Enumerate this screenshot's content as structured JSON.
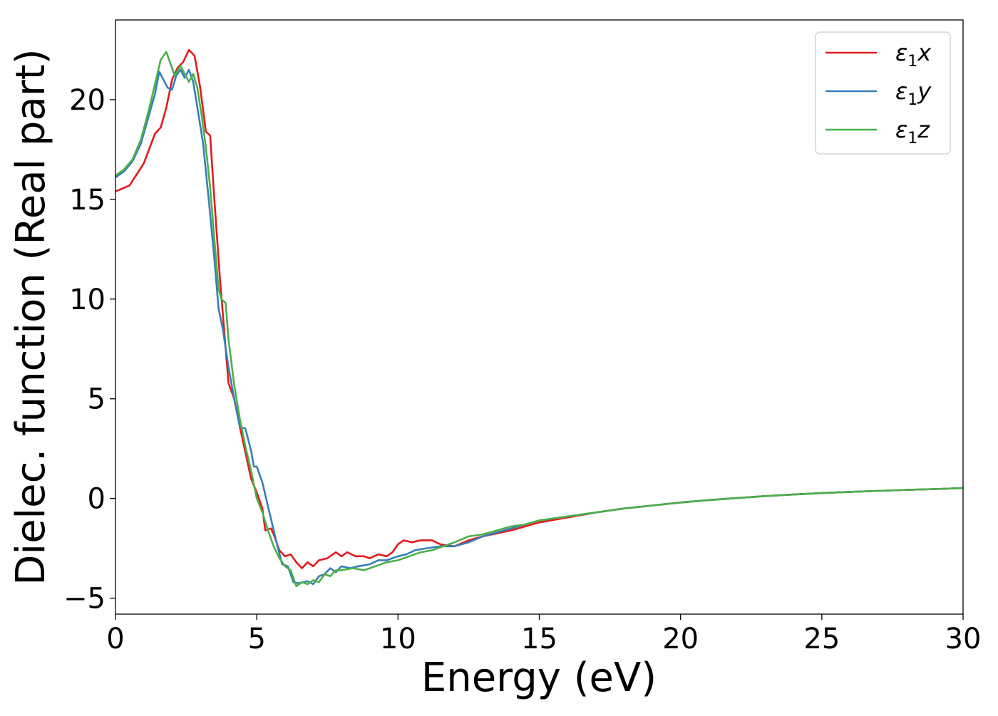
{
  "chart_data": {
    "type": "line",
    "title": "",
    "xlabel": "Energy (eV)",
    "ylabel": "Dielec. function (Real part)",
    "xlim": [
      0,
      30
    ],
    "ylim": [
      -5.8,
      24
    ],
    "x_ticks": [
      0,
      5,
      10,
      15,
      20,
      25,
      30
    ],
    "x_tick_labels": [
      "0",
      "5",
      "10",
      "15",
      "20",
      "25",
      "30"
    ],
    "y_ticks": [
      -5,
      0,
      5,
      10,
      15,
      20
    ],
    "y_tick_labels": [
      "−5",
      "0",
      "5",
      "10",
      "15",
      "20"
    ],
    "grid": false,
    "legend_position": "top-right",
    "series": [
      {
        "name": "ε₁x",
        "legend": {
          "base": "ε",
          "sub": "1",
          "var": "x"
        },
        "color": "#e41a1c",
        "points": [
          [
            0,
            15.4
          ],
          [
            0.5,
            15.7
          ],
          [
            1.0,
            16.8
          ],
          [
            1.4,
            18.3
          ],
          [
            1.6,
            18.6
          ],
          [
            1.8,
            19.6
          ],
          [
            2.0,
            21.0
          ],
          [
            2.2,
            21.6
          ],
          [
            2.4,
            21.9
          ],
          [
            2.6,
            22.5
          ],
          [
            2.8,
            22.2
          ],
          [
            3.0,
            20.6
          ],
          [
            3.2,
            18.4
          ],
          [
            3.35,
            18.2
          ],
          [
            3.5,
            15.0
          ],
          [
            3.7,
            11.0
          ],
          [
            3.9,
            7.5
          ],
          [
            4.0,
            5.8
          ],
          [
            4.2,
            5.0
          ],
          [
            4.4,
            3.6
          ],
          [
            4.6,
            2.3
          ],
          [
            4.8,
            1.0
          ],
          [
            5.0,
            0.3
          ],
          [
            5.2,
            -0.5
          ],
          [
            5.3,
            -1.6
          ],
          [
            5.5,
            -1.5
          ],
          [
            5.6,
            -1.8
          ],
          [
            5.8,
            -2.6
          ],
          [
            6.0,
            -2.9
          ],
          [
            6.2,
            -2.8
          ],
          [
            6.4,
            -3.2
          ],
          [
            6.6,
            -3.5
          ],
          [
            6.8,
            -3.2
          ],
          [
            7.0,
            -3.4
          ],
          [
            7.2,
            -3.1
          ],
          [
            7.5,
            -3.0
          ],
          [
            7.8,
            -2.7
          ],
          [
            8.0,
            -2.9
          ],
          [
            8.2,
            -2.7
          ],
          [
            8.5,
            -2.9
          ],
          [
            8.8,
            -2.9
          ],
          [
            9.0,
            -3.0
          ],
          [
            9.3,
            -2.8
          ],
          [
            9.6,
            -2.9
          ],
          [
            9.8,
            -2.7
          ],
          [
            10.0,
            -2.3
          ],
          [
            10.2,
            -2.1
          ],
          [
            10.5,
            -2.2
          ],
          [
            10.8,
            -2.1
          ],
          [
            11.2,
            -2.1
          ],
          [
            11.5,
            -2.3
          ],
          [
            12.0,
            -2.4
          ],
          [
            12.5,
            -2.1
          ],
          [
            13.0,
            -1.9
          ],
          [
            14.0,
            -1.6
          ],
          [
            15.0,
            -1.2
          ],
          [
            16.0,
            -0.95
          ],
          [
            17.0,
            -0.7
          ],
          [
            18.0,
            -0.5
          ],
          [
            19.0,
            -0.35
          ],
          [
            20.0,
            -0.2
          ],
          [
            21.0,
            -0.08
          ],
          [
            22.0,
            0.02
          ],
          [
            23.0,
            0.12
          ],
          [
            24.0,
            0.2
          ],
          [
            25.0,
            0.27
          ],
          [
            26.0,
            0.33
          ],
          [
            27.0,
            0.38
          ],
          [
            28.0,
            0.43
          ],
          [
            29.0,
            0.47
          ],
          [
            30.0,
            0.52
          ]
        ]
      },
      {
        "name": "ε₁y",
        "legend": {
          "base": "ε",
          "sub": "1",
          "var": "y"
        },
        "color": "#377eb8",
        "points": [
          [
            0,
            16.1
          ],
          [
            0.3,
            16.4
          ],
          [
            0.6,
            16.9
          ],
          [
            0.9,
            17.8
          ],
          [
            1.2,
            19.3
          ],
          [
            1.4,
            20.3
          ],
          [
            1.55,
            21.4
          ],
          [
            1.7,
            21.0
          ],
          [
            1.85,
            20.6
          ],
          [
            2.0,
            20.5
          ],
          [
            2.15,
            21.2
          ],
          [
            2.3,
            21.5
          ],
          [
            2.45,
            21.1
          ],
          [
            2.6,
            21.5
          ],
          [
            2.75,
            20.9
          ],
          [
            2.9,
            19.6
          ],
          [
            3.1,
            17.8
          ],
          [
            3.3,
            15.0
          ],
          [
            3.5,
            12.0
          ],
          [
            3.65,
            9.5
          ],
          [
            3.8,
            8.5
          ],
          [
            4.0,
            6.6
          ],
          [
            4.2,
            5.0
          ],
          [
            4.4,
            3.6
          ],
          [
            4.6,
            3.5
          ],
          [
            4.8,
            2.4
          ],
          [
            4.9,
            1.6
          ],
          [
            5.0,
            1.6
          ],
          [
            5.2,
            0.8
          ],
          [
            5.4,
            -0.4
          ],
          [
            5.5,
            -1.0
          ],
          [
            5.7,
            -2.2
          ],
          [
            5.9,
            -3.3
          ],
          [
            6.1,
            -3.4
          ],
          [
            6.3,
            -4.2
          ],
          [
            6.5,
            -4.25
          ],
          [
            6.8,
            -4.15
          ],
          [
            7.0,
            -4.3
          ],
          [
            7.2,
            -3.9
          ],
          [
            7.4,
            -3.8
          ],
          [
            7.6,
            -3.5
          ],
          [
            7.8,
            -3.7
          ],
          [
            8.0,
            -3.4
          ],
          [
            8.3,
            -3.5
          ],
          [
            8.6,
            -3.4
          ],
          [
            9.0,
            -3.3
          ],
          [
            9.3,
            -3.1
          ],
          [
            9.6,
            -3.1
          ],
          [
            10.0,
            -2.9
          ],
          [
            10.3,
            -2.8
          ],
          [
            10.6,
            -2.6
          ],
          [
            11.0,
            -2.5
          ],
          [
            11.5,
            -2.4
          ],
          [
            12.0,
            -2.4
          ],
          [
            12.5,
            -2.2
          ],
          [
            13.0,
            -1.9
          ],
          [
            13.5,
            -1.7
          ],
          [
            14.0,
            -1.5
          ],
          [
            14.5,
            -1.3
          ],
          [
            15.0,
            -1.1
          ],
          [
            16.0,
            -0.9
          ],
          [
            17.0,
            -0.7
          ],
          [
            18.0,
            -0.5
          ],
          [
            19.0,
            -0.35
          ],
          [
            20.0,
            -0.2
          ],
          [
            21.0,
            -0.08
          ],
          [
            22.0,
            0.02
          ],
          [
            23.0,
            0.12
          ],
          [
            24.0,
            0.2
          ],
          [
            25.0,
            0.27
          ],
          [
            26.0,
            0.33
          ],
          [
            27.0,
            0.38
          ],
          [
            28.0,
            0.43
          ],
          [
            29.0,
            0.47
          ],
          [
            30.0,
            0.52
          ]
        ]
      },
      {
        "name": "ε₁z",
        "legend": {
          "base": "ε",
          "sub": "1",
          "var": "z"
        },
        "color": "#4daf4a",
        "points": [
          [
            0,
            16.2
          ],
          [
            0.3,
            16.5
          ],
          [
            0.6,
            17.0
          ],
          [
            0.9,
            18.0
          ],
          [
            1.2,
            19.6
          ],
          [
            1.4,
            20.8
          ],
          [
            1.6,
            22.0
          ],
          [
            1.8,
            22.4
          ],
          [
            1.95,
            21.8
          ],
          [
            2.1,
            21.2
          ],
          [
            2.3,
            21.7
          ],
          [
            2.45,
            21.3
          ],
          [
            2.6,
            20.9
          ],
          [
            2.75,
            21.3
          ],
          [
            2.9,
            20.6
          ],
          [
            3.05,
            19.2
          ],
          [
            3.2,
            17.6
          ],
          [
            3.35,
            15.6
          ],
          [
            3.5,
            13.0
          ],
          [
            3.65,
            10.5
          ],
          [
            3.75,
            10.0
          ],
          [
            3.9,
            9.8
          ],
          [
            4.0,
            8.0
          ],
          [
            4.2,
            5.7
          ],
          [
            4.4,
            4.0
          ],
          [
            4.6,
            2.6
          ],
          [
            4.8,
            1.4
          ],
          [
            5.0,
            0.0
          ],
          [
            5.2,
            -0.7
          ],
          [
            5.4,
            -1.6
          ],
          [
            5.6,
            -2.4
          ],
          [
            5.8,
            -3.0
          ],
          [
            6.0,
            -3.4
          ],
          [
            6.2,
            -3.6
          ],
          [
            6.4,
            -4.4
          ],
          [
            6.6,
            -4.2
          ],
          [
            6.8,
            -4.3
          ],
          [
            7.0,
            -4.1
          ],
          [
            7.2,
            -4.2
          ],
          [
            7.4,
            -3.8
          ],
          [
            7.6,
            -3.9
          ],
          [
            7.8,
            -3.6
          ],
          [
            8.0,
            -3.6
          ],
          [
            8.4,
            -3.5
          ],
          [
            8.8,
            -3.6
          ],
          [
            9.2,
            -3.4
          ],
          [
            9.6,
            -3.2
          ],
          [
            10.0,
            -3.1
          ],
          [
            10.4,
            -2.9
          ],
          [
            10.8,
            -2.7
          ],
          [
            11.2,
            -2.6
          ],
          [
            11.6,
            -2.4
          ],
          [
            12.0,
            -2.2
          ],
          [
            12.5,
            -1.9
          ],
          [
            13.0,
            -1.8
          ],
          [
            13.5,
            -1.6
          ],
          [
            14.0,
            -1.4
          ],
          [
            14.5,
            -1.3
          ],
          [
            15.0,
            -1.1
          ],
          [
            16.0,
            -0.9
          ],
          [
            17.0,
            -0.7
          ],
          [
            18.0,
            -0.5
          ],
          [
            19.0,
            -0.35
          ],
          [
            20.0,
            -0.2
          ],
          [
            21.0,
            -0.08
          ],
          [
            22.0,
            0.02
          ],
          [
            23.0,
            0.12
          ],
          [
            24.0,
            0.2
          ],
          [
            25.0,
            0.27
          ],
          [
            26.0,
            0.33
          ],
          [
            27.0,
            0.38
          ],
          [
            28.0,
            0.43
          ],
          [
            29.0,
            0.47
          ],
          [
            30.0,
            0.52
          ]
        ]
      }
    ]
  }
}
